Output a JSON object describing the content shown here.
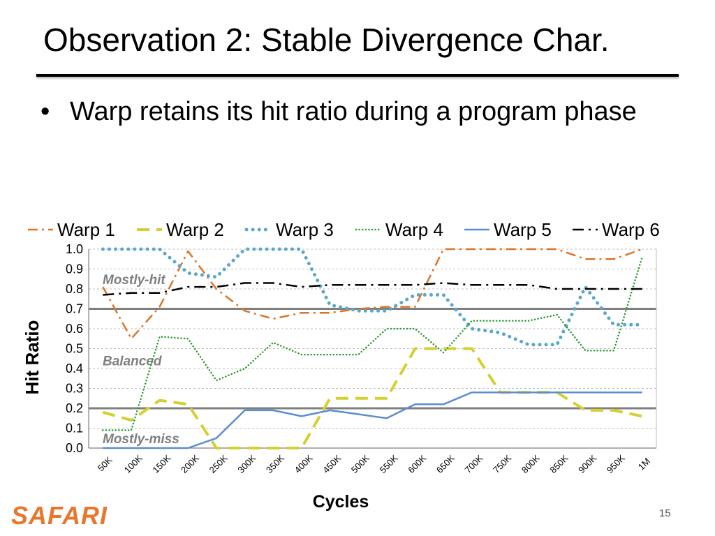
{
  "slide": {
    "title": "Observation 2: Stable Divergence Char.",
    "bullet": "Warp retains its hit ratio during a program phase",
    "bullet_marker": "•",
    "footer_logo": "SAFARI",
    "page_number": "15"
  },
  "colors": {
    "warp1": "#d9762a",
    "warp2": "#d4cf32",
    "warp3": "#5aa8c8",
    "warp4": "#2a9b32",
    "warp5": "#5b8ed0",
    "warp6": "#000000",
    "threshold": "#7f7f7f",
    "region_label": "#7f7f7f",
    "gridline": "#bfbfbf",
    "logo": "#e8772e"
  },
  "chart_data": {
    "type": "line",
    "title": "",
    "xlabel": "Cycles",
    "ylabel": "Hit Ratio",
    "ylim": [
      0,
      1
    ],
    "yticks": [
      "0.0",
      "0.1",
      "0.2",
      "0.3",
      "0.4",
      "0.5",
      "0.6",
      "0.7",
      "0.8",
      "0.9",
      "1.0"
    ],
    "categories": [
      "50K",
      "100K",
      "150K",
      "200K",
      "250K",
      "300K",
      "350K",
      "400K",
      "450K",
      "500K",
      "550K",
      "600K",
      "650K",
      "700K",
      "750K",
      "800K",
      "850K",
      "900K",
      "950K",
      "1M"
    ],
    "thresholds": [
      0.7,
      0.2
    ],
    "region_labels": [
      {
        "text": "Mostly-hit",
        "y": 0.85
      },
      {
        "text": "Balanced",
        "y": 0.44
      },
      {
        "text": "Mostly-miss",
        "y": 0.05
      }
    ],
    "legend_position": "top",
    "series": [
      {
        "name": "Warp 1",
        "style": "dashdot",
        "values": [
          0.81,
          0.55,
          0.71,
          0.99,
          0.8,
          0.69,
          0.65,
          0.68,
          0.68,
          0.7,
          0.71,
          0.71,
          1.0,
          1.0,
          1.0,
          1.0,
          1.0,
          0.95,
          0.95,
          1.0
        ]
      },
      {
        "name": "Warp 2",
        "style": "longdash",
        "values": [
          0.18,
          0.14,
          0.24,
          0.22,
          0.0,
          0.0,
          0.0,
          0.0,
          0.25,
          0.25,
          0.25,
          0.5,
          0.5,
          0.5,
          0.28,
          0.28,
          0.28,
          0.19,
          0.19,
          0.16
        ]
      },
      {
        "name": "Warp 3",
        "style": "dot",
        "values": [
          1.0,
          1.0,
          1.0,
          0.88,
          0.86,
          1.0,
          1.0,
          1.0,
          0.72,
          0.69,
          0.69,
          0.77,
          0.77,
          0.6,
          0.58,
          0.52,
          0.52,
          0.81,
          0.62,
          0.62
        ]
      },
      {
        "name": "Warp 4",
        "style": "smalldot",
        "values": [
          0.09,
          0.09,
          0.56,
          0.55,
          0.34,
          0.4,
          0.53,
          0.47,
          0.47,
          0.47,
          0.6,
          0.6,
          0.48,
          0.64,
          0.64,
          0.64,
          0.67,
          0.49,
          0.49,
          0.96
        ]
      },
      {
        "name": "Warp 5",
        "style": "solid",
        "values": [
          0.0,
          0.0,
          0.0,
          0.0,
          0.05,
          0.19,
          0.19,
          0.16,
          0.19,
          0.17,
          0.15,
          0.22,
          0.22,
          0.28,
          0.28,
          0.28,
          0.28,
          0.28,
          0.28,
          0.28
        ]
      },
      {
        "name": "Warp 6",
        "style": "longdashdot",
        "values": [
          0.77,
          0.78,
          0.78,
          0.81,
          0.81,
          0.83,
          0.83,
          0.81,
          0.82,
          0.82,
          0.82,
          0.82,
          0.83,
          0.82,
          0.82,
          0.82,
          0.8,
          0.8,
          0.8,
          0.8
        ]
      }
    ]
  }
}
